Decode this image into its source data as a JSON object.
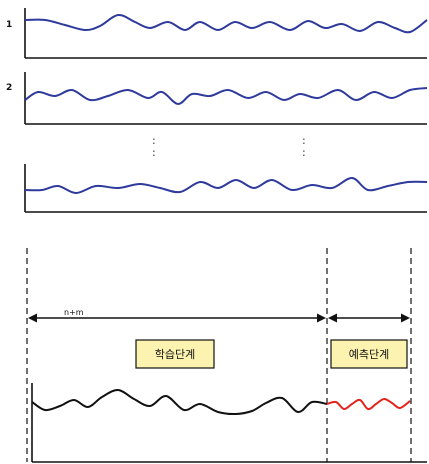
{
  "series_panels": [
    {
      "label": "1",
      "color": "#2e3a9c"
    },
    {
      "label": "2",
      "color": "#2e3a9c"
    },
    {
      "label": "",
      "color": "#2e3a9c"
    }
  ],
  "ellipsis_glyph": ":",
  "span_label": "n+m",
  "phases": {
    "training": {
      "label": "학습단계",
      "fill": "#fdf3b0",
      "line_color": "#111111"
    },
    "prediction": {
      "label": "예측단계",
      "fill": "#fdf3b0",
      "line_color": "#e3241b"
    }
  }
}
